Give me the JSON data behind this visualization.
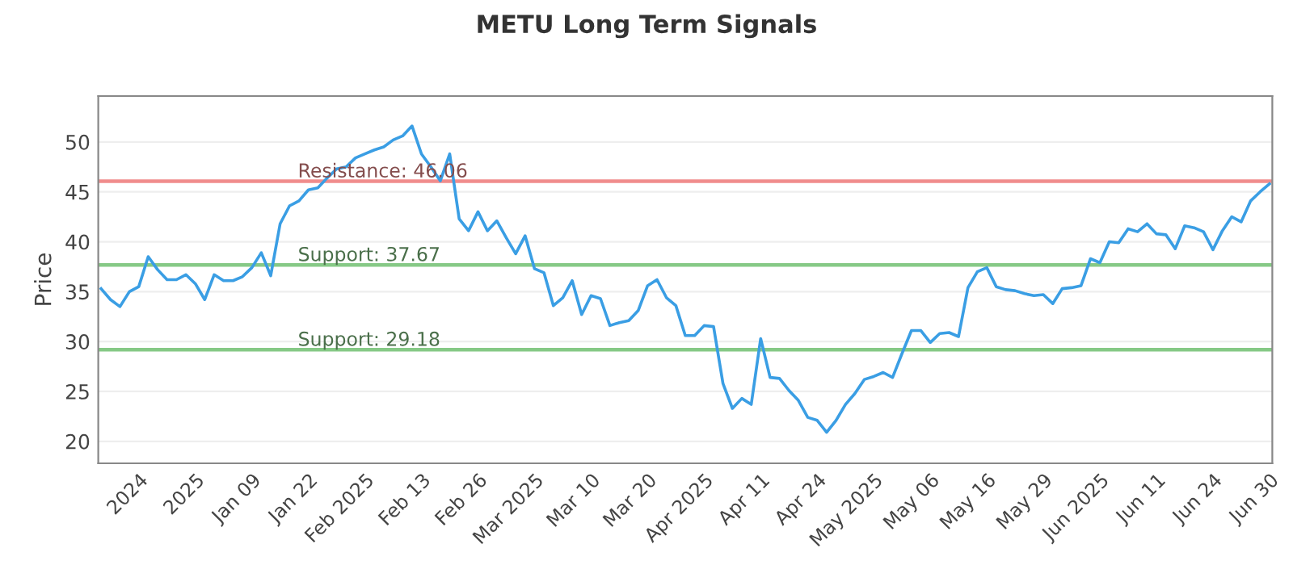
{
  "chart_data": {
    "type": "line",
    "title": "METU Long Term Signals",
    "ylabel": "Price",
    "categories": [
      null,
      null,
      null,
      null,
      "2024",
      null,
      null,
      null,
      null,
      null,
      "2025",
      null,
      null,
      null,
      null,
      null,
      "Jan 09",
      null,
      null,
      null,
      null,
      null,
      "Jan 22",
      null,
      null,
      null,
      null,
      null,
      "Feb 2025",
      null,
      null,
      null,
      null,
      null,
      "Feb 13",
      null,
      null,
      null,
      null,
      null,
      "Feb 26",
      null,
      null,
      null,
      null,
      null,
      "Mar 2025",
      null,
      null,
      null,
      null,
      null,
      "Mar 10",
      null,
      null,
      null,
      null,
      null,
      "Mar 20",
      null,
      null,
      null,
      null,
      null,
      "Apr 2025",
      null,
      null,
      null,
      null,
      null,
      "Apr 11",
      null,
      null,
      null,
      null,
      null,
      "Apr 24",
      null,
      null,
      null,
      null,
      null,
      "May 2025",
      null,
      null,
      null,
      null,
      null,
      "May 06",
      null,
      null,
      null,
      null,
      null,
      "May 16",
      null,
      null,
      null,
      null,
      null,
      "May 29",
      null,
      null,
      null,
      null,
      null,
      "Jun 2025",
      null,
      null,
      null,
      null,
      null,
      "Jun 11",
      null,
      null,
      null,
      null,
      null,
      "Jun 24",
      null,
      null,
      null,
      null,
      null,
      "Jun 30"
    ],
    "series": [
      {
        "color": "#3a9ee4",
        "values": [
          35.3,
          34.2,
          33.5,
          35.0,
          35.5,
          38.5,
          37.2,
          36.2,
          36.2,
          36.7,
          35.8,
          34.2,
          36.7,
          36.1,
          36.1,
          36.5,
          37.4,
          38.9,
          36.6,
          41.8,
          43.6,
          44.1,
          45.2,
          45.4,
          46.4,
          47.3,
          47.5,
          48.4,
          48.8,
          49.2,
          49.5,
          50.2,
          50.6,
          51.6,
          48.8,
          47.5,
          46.1,
          48.8,
          42.3,
          41.1,
          43.0,
          41.1,
          42.1,
          40.4,
          38.8,
          40.6,
          37.3,
          36.9,
          33.6,
          34.4,
          36.1,
          32.7,
          34.6,
          34.3,
          31.6,
          31.9,
          32.1,
          33.1,
          35.6,
          36.2,
          34.4,
          33.6,
          30.6,
          30.6,
          31.6,
          31.5,
          25.8,
          23.3,
          24.3,
          23.7,
          30.3,
          26.4,
          26.3,
          25.1,
          24.1,
          22.4,
          22.1,
          20.9,
          22.1,
          23.7,
          24.8,
          26.2,
          26.5,
          26.9,
          26.4,
          28.8,
          31.1,
          31.1,
          29.9,
          30.8,
          30.9,
          30.5,
          35.4,
          37.0,
          37.4,
          35.5,
          35.2,
          35.1,
          34.8,
          34.6,
          34.7,
          33.8,
          35.3,
          35.4,
          35.6,
          38.3,
          37.9,
          40.0,
          39.9,
          41.3,
          41.0,
          41.8,
          40.8,
          40.7,
          39.3,
          41.6,
          41.4,
          41.0,
          39.2,
          41.1,
          42.5,
          42.0,
          44.1,
          45.0,
          45.8
        ]
      }
    ],
    "ylim": [
      17.8,
      54.6
    ],
    "yticks": [
      20,
      25,
      30,
      35,
      40,
      45,
      50
    ],
    "grid": "y",
    "ref_lines": [
      {
        "axis": "y",
        "value": 46.06,
        "label": "Resistance: 46.06",
        "color": "#f08c8c"
      },
      {
        "axis": "y",
        "value": 37.67,
        "label": "Support: 37.67",
        "color": "#86c986"
      },
      {
        "axis": "y",
        "value": 29.18,
        "label": "Support: 29.18",
        "color": "#86c986"
      }
    ]
  }
}
